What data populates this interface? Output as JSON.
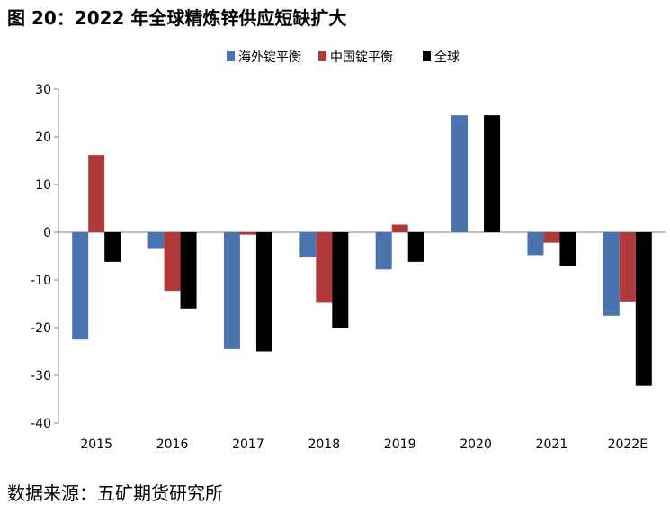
{
  "title": "图 20：2022 年全球精炼锌供应短缺扩大",
  "source": "数据来源：五矿期货研究所",
  "colors": {
    "overseas": "#4a74b0",
    "china": "#b03a3a",
    "global": "#000000",
    "axis": "#808080"
  },
  "chart_data": {
    "type": "bar",
    "title": "",
    "xlabel": "",
    "ylabel": "",
    "categories": [
      "2015",
      "2016",
      "2017",
      "2018",
      "2019",
      "2020",
      "2021",
      "2022E"
    ],
    "ylim": [
      -40,
      30
    ],
    "yticks": [
      30,
      20,
      10,
      0,
      -10,
      -20,
      -30,
      -40
    ],
    "grid": false,
    "legend_position": "top-center",
    "series": [
      {
        "name": "海外锭平衡",
        "color": "#4a74b0",
        "values": [
          -22.5,
          -3.5,
          -24.5,
          -5.3,
          -7.8,
          24.5,
          -4.8,
          -17.5
        ]
      },
      {
        "name": "中国锭平衡",
        "color": "#b03a3a",
        "values": [
          16.2,
          -12.3,
          -0.5,
          -14.8,
          1.6,
          0,
          -2.2,
          -14.5
        ]
      },
      {
        "name": "全球",
        "color": "#000000",
        "values": [
          -6.2,
          -16.0,
          -25.0,
          -20.0,
          -6.2,
          24.5,
          -7.0,
          -32.2
        ]
      }
    ]
  }
}
